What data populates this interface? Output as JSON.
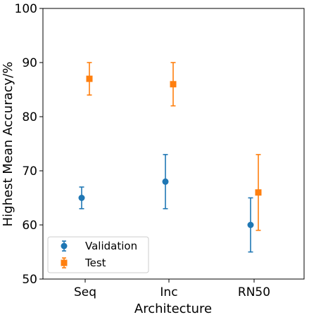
{
  "chart_data": {
    "type": "scatter",
    "xlabel": "Architecture",
    "ylabel": "Highest Mean Accuracy/%",
    "categories": [
      "Seq",
      "Inc",
      "RN50"
    ],
    "ylim": [
      50,
      100
    ],
    "yticks": [
      "50",
      "60",
      "70",
      "80",
      "90",
      "100"
    ],
    "grid": false,
    "legend_position": "lower-left",
    "series": [
      {
        "name": "Validation",
        "marker": "circle",
        "color": "#1f77b4",
        "values": [
          65,
          68,
          60
        ],
        "lower": [
          63,
          63,
          55
        ],
        "upper": [
          67,
          73,
          65
        ]
      },
      {
        "name": "Test",
        "marker": "square",
        "color": "#ff7f0e",
        "values": [
          87,
          86,
          66
        ],
        "lower": [
          84,
          82,
          59
        ],
        "upper": [
          90,
          90,
          73
        ]
      }
    ]
  }
}
